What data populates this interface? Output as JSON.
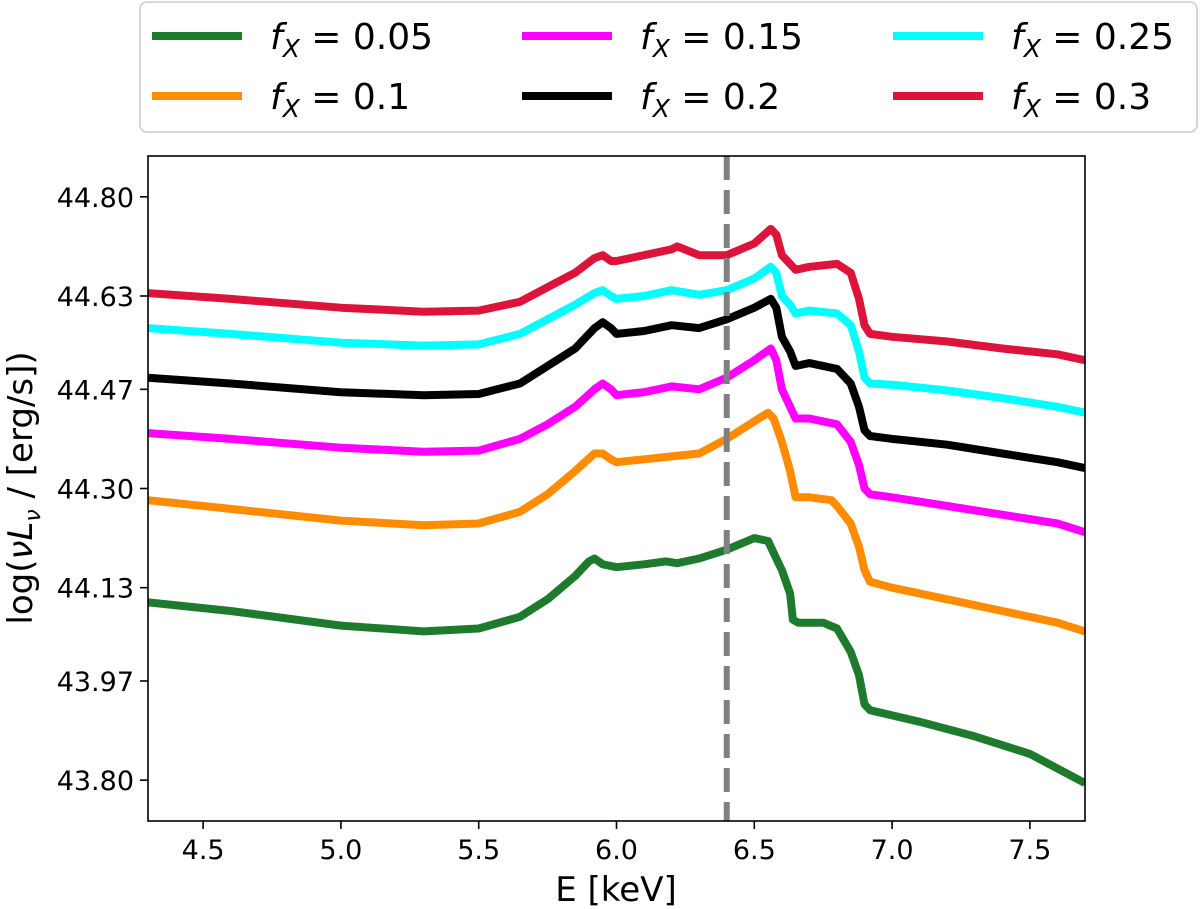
{
  "chart_data": {
    "type": "line",
    "title": "",
    "xlabel": "E [keV]",
    "ylabel": "log(νLν / [erg/s])",
    "xlim": [
      4.3,
      7.7
    ],
    "ylim": [
      43.73,
      44.87
    ],
    "xticks": [
      4.5,
      5.0,
      5.5,
      6.0,
      6.5,
      7.0,
      7.5
    ],
    "xtick_labels": [
      "4.5",
      "5.0",
      "5.5",
      "6.0",
      "6.5",
      "7.0",
      "7.5"
    ],
    "yticks": [
      43.8,
      43.97,
      44.13,
      44.3,
      44.47,
      44.63,
      44.8
    ],
    "ytick_labels": [
      "43.80",
      "43.97",
      "44.13",
      "44.30",
      "44.47",
      "44.63",
      "44.80"
    ],
    "vline": {
      "x": 6.4,
      "style": "dashed",
      "color": "#808080"
    },
    "legend": {
      "placement": "top",
      "columns": 3
    },
    "series": [
      {
        "name": "f_X = 0.05",
        "label_var": "f",
        "label_sub": "X",
        "label_value": "= 0.05",
        "color": "#1e7b2e",
        "x": [
          4.3,
          4.6,
          5.0,
          5.3,
          5.5,
          5.65,
          5.75,
          5.85,
          5.9,
          5.92,
          5.95,
          6.0,
          6.1,
          6.18,
          6.22,
          6.3,
          6.4,
          6.5,
          6.55,
          6.58,
          6.6,
          6.63,
          6.64,
          6.66,
          6.7,
          6.75,
          6.8,
          6.85,
          6.88,
          6.9,
          6.92,
          7.1,
          7.3,
          7.5,
          7.7
        ],
        "values": [
          44.105,
          44.09,
          44.065,
          44.055,
          44.06,
          44.08,
          44.11,
          44.15,
          44.175,
          44.18,
          44.17,
          44.165,
          44.17,
          44.175,
          44.172,
          44.18,
          44.195,
          44.215,
          44.21,
          44.18,
          44.16,
          44.12,
          44.075,
          44.07,
          44.07,
          44.07,
          44.06,
          44.02,
          43.98,
          43.93,
          43.92,
          43.9,
          43.875,
          43.845,
          43.795
        ]
      },
      {
        "name": "f_X = 0.1",
        "label_var": "f",
        "label_sub": "X",
        "label_value": "= 0.1",
        "color": "#ff8c00",
        "x": [
          4.3,
          4.6,
          5.0,
          5.3,
          5.5,
          5.65,
          5.75,
          5.85,
          5.92,
          5.95,
          5.98,
          6.0,
          6.1,
          6.2,
          6.3,
          6.4,
          6.5,
          6.55,
          6.57,
          6.6,
          6.63,
          6.65,
          6.7,
          6.78,
          6.8,
          6.85,
          6.88,
          6.9,
          6.92,
          7.0,
          7.2,
          7.4,
          7.6,
          7.7
        ],
        "values": [
          44.28,
          44.265,
          44.245,
          44.237,
          44.24,
          44.26,
          44.29,
          44.33,
          44.36,
          44.36,
          44.35,
          44.345,
          44.35,
          44.355,
          44.36,
          44.385,
          44.415,
          44.43,
          44.42,
          44.38,
          44.33,
          44.285,
          44.285,
          44.28,
          44.27,
          44.24,
          44.2,
          44.16,
          44.14,
          44.13,
          44.11,
          44.09,
          44.07,
          44.055
        ]
      },
      {
        "name": "f_X = 0.15",
        "label_var": "f",
        "label_sub": "X",
        "label_value": "= 0.15",
        "color": "#ff00ff",
        "x": [
          4.3,
          4.6,
          5.0,
          5.3,
          5.5,
          5.65,
          5.75,
          5.85,
          5.92,
          5.95,
          5.98,
          6.0,
          6.1,
          6.2,
          6.3,
          6.4,
          6.5,
          6.56,
          6.58,
          6.6,
          6.63,
          6.65,
          6.7,
          6.8,
          6.85,
          6.88,
          6.9,
          6.92,
          7.0,
          7.2,
          7.4,
          7.6,
          7.7
        ],
        "values": [
          44.395,
          44.385,
          44.37,
          44.363,
          44.365,
          44.385,
          44.41,
          44.44,
          44.47,
          44.48,
          44.47,
          44.46,
          44.465,
          44.475,
          44.47,
          44.49,
          44.52,
          44.54,
          44.52,
          44.47,
          44.44,
          44.42,
          44.42,
          44.41,
          44.38,
          44.34,
          44.3,
          44.29,
          44.285,
          44.27,
          44.255,
          44.24,
          44.225
        ]
      },
      {
        "name": "f_X = 0.2",
        "label_var": "f",
        "label_sub": "X",
        "label_value": "= 0.2",
        "color": "#000000",
        "x": [
          4.3,
          4.6,
          5.0,
          5.3,
          5.5,
          5.65,
          5.75,
          5.85,
          5.92,
          5.95,
          5.98,
          6.0,
          6.1,
          6.2,
          6.3,
          6.4,
          6.5,
          6.56,
          6.58,
          6.6,
          6.63,
          6.65,
          6.7,
          6.8,
          6.85,
          6.88,
          6.9,
          6.92,
          7.0,
          7.2,
          7.4,
          7.6,
          7.7
        ],
        "values": [
          44.49,
          44.48,
          44.465,
          44.46,
          44.462,
          44.48,
          44.51,
          44.54,
          44.575,
          44.585,
          44.575,
          44.565,
          44.57,
          44.58,
          44.575,
          44.59,
          44.61,
          44.625,
          44.61,
          44.56,
          44.535,
          44.51,
          44.515,
          44.505,
          44.48,
          44.44,
          44.4,
          44.39,
          44.385,
          44.375,
          44.36,
          44.345,
          44.335
        ]
      },
      {
        "name": "f_X = 0.25",
        "label_var": "f",
        "label_sub": "X",
        "label_value": "= 0.25",
        "color": "#00ffff",
        "x": [
          4.3,
          4.6,
          5.0,
          5.3,
          5.5,
          5.65,
          5.75,
          5.85,
          5.92,
          5.95,
          5.98,
          6.0,
          6.1,
          6.2,
          6.3,
          6.4,
          6.5,
          6.56,
          6.58,
          6.6,
          6.63,
          6.65,
          6.7,
          6.8,
          6.85,
          6.88,
          6.9,
          6.92,
          7.0,
          7.2,
          7.4,
          7.6,
          7.7
        ],
        "values": [
          44.575,
          44.565,
          44.55,
          44.545,
          44.547,
          44.565,
          44.59,
          44.615,
          44.635,
          44.64,
          44.63,
          44.625,
          44.63,
          44.64,
          44.632,
          44.64,
          44.66,
          44.68,
          44.67,
          44.63,
          44.615,
          44.6,
          44.605,
          44.6,
          44.58,
          44.535,
          44.49,
          44.48,
          44.478,
          44.468,
          44.455,
          44.44,
          44.43
        ]
      },
      {
        "name": "f_X = 0.3",
        "label_var": "f",
        "label_sub": "X",
        "label_value": "= 0.3",
        "color": "#dc143c",
        "x": [
          4.3,
          4.6,
          5.0,
          5.3,
          5.5,
          5.65,
          5.75,
          5.85,
          5.92,
          5.95,
          5.98,
          6.0,
          6.1,
          6.2,
          6.22,
          6.3,
          6.4,
          6.5,
          6.56,
          6.58,
          6.6,
          6.63,
          6.65,
          6.7,
          6.8,
          6.85,
          6.88,
          6.9,
          6.92,
          7.0,
          7.2,
          7.4,
          7.6,
          7.7
        ],
        "values": [
          44.635,
          44.625,
          44.61,
          44.603,
          44.605,
          44.62,
          44.645,
          44.67,
          44.695,
          44.7,
          44.69,
          44.69,
          44.7,
          44.71,
          44.715,
          44.7,
          44.7,
          44.72,
          44.745,
          44.735,
          44.7,
          44.685,
          44.675,
          44.68,
          44.685,
          44.67,
          44.625,
          44.58,
          44.565,
          44.56,
          44.552,
          44.54,
          44.53,
          44.52
        ]
      }
    ]
  }
}
